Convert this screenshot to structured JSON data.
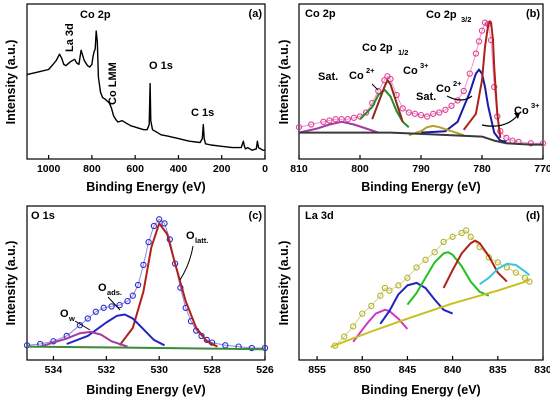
{
  "panels": [
    {
      "id": "a",
      "tag": "(a)",
      "title": "",
      "xlabel": "Binding Energy (eV)",
      "ylabel": "Intensity (a.u.)",
      "xlim": [
        1100,
        0
      ],
      "xticks": [
        "1000",
        "800",
        "600",
        "400",
        "200",
        "0"
      ],
      "annotations": [
        "La 3d",
        "Co 2p",
        "Co LMM",
        "O 1s",
        "C 1s"
      ]
    },
    {
      "id": "b",
      "tag": "(b)",
      "title": "Co 2p",
      "xlabel": "Binding Energy (eV)",
      "ylabel": "Intensity (a.u.)",
      "xlim": [
        810,
        770
      ],
      "xticks": [
        "810",
        "800",
        "790",
        "780",
        "770"
      ],
      "annotations": [
        "Sat.",
        "Co",
        "2+",
        "Co 2p",
        "1/2",
        "Co",
        "3+",
        "Sat.",
        "Co",
        "2+",
        "Co 2p",
        "3/2",
        "Co",
        "3+"
      ]
    },
    {
      "id": "c",
      "tag": "(c)",
      "title": "O 1s",
      "xlabel": "Binding Energy (eV)",
      "ylabel": "Intensity (a.u.)",
      "xlim": [
        535,
        526
      ],
      "xticks": [
        "534",
        "532",
        "530",
        "528",
        "526"
      ],
      "annotations": [
        "O",
        "w",
        "O",
        "ads.",
        "O",
        "latt."
      ]
    },
    {
      "id": "d",
      "tag": "(d)",
      "title": "La 3d",
      "xlabel": "Binding Energy (eV)",
      "ylabel": "Intensity (a.u.)",
      "xlim": [
        857,
        830
      ],
      "xticks": [
        "855",
        "850",
        "845",
        "840",
        "835",
        "830"
      ],
      "annotations": []
    }
  ],
  "chart_data": [
    {
      "panel": "a",
      "type": "line",
      "xlim": [
        1100,
        0
      ],
      "series": [
        {
          "color": "#000000",
          "x": [
            1100,
            1050,
            1000,
            980,
            965,
            950,
            940,
            930,
            920,
            900,
            880,
            870,
            860,
            850,
            835,
            820,
            810,
            800,
            795,
            790,
            785,
            780,
            775,
            770,
            760,
            750,
            740,
            720,
            710,
            700,
            690,
            680,
            660,
            640,
            620,
            600,
            580,
            560,
            545,
            535,
            531,
            528,
            520,
            500,
            480,
            450,
            400,
            350,
            300,
            290,
            285,
            281,
            275,
            250,
            200,
            150,
            110,
            100,
            95,
            90,
            80,
            60,
            40,
            35,
            30,
            20,
            10,
            0
          ],
          "y": [
            0.62,
            0.64,
            0.66,
            0.7,
            0.73,
            0.78,
            0.75,
            0.7,
            0.69,
            0.72,
            0.74,
            0.71,
            0.7,
            0.81,
            0.73,
            0.69,
            0.68,
            0.7,
            0.76,
            0.8,
            0.82,
            0.96,
            0.88,
            0.6,
            0.48,
            0.44,
            0.43,
            0.4,
            0.36,
            0.3,
            0.27,
            0.25,
            0.26,
            0.24,
            0.22,
            0.21,
            0.2,
            0.19,
            0.19,
            0.23,
            0.55,
            0.26,
            0.19,
            0.17,
            0.15,
            0.14,
            0.12,
            0.1,
            0.09,
            0.12,
            0.23,
            0.12,
            0.08,
            0.07,
            0.06,
            0.05,
            0.05,
            0.1,
            0.06,
            0.04,
            0.05,
            0.03,
            0.04,
            0.1,
            0.05,
            0.04,
            0.03,
            0.03
          ]
        }
      ]
    },
    {
      "panel": "b",
      "type": "line",
      "xlim": [
        810,
        770
      ],
      "series": [
        {
          "color": "#e0409a",
          "style": "scatter",
          "x": [
            810,
            808,
            806,
            805,
            804,
            803,
            802,
            801,
            800,
            799,
            798,
            797,
            796,
            795.5,
            795,
            794,
            793,
            792,
            791,
            790,
            789,
            788,
            787,
            786,
            785,
            784,
            783,
            782,
            781,
            780.5,
            780,
            779.5,
            779,
            778.5,
            778,
            777.5,
            777,
            776,
            775,
            774,
            772,
            770
          ],
          "y": [
            0.2,
            0.22,
            0.24,
            0.25,
            0.26,
            0.26,
            0.26,
            0.27,
            0.28,
            0.31,
            0.38,
            0.47,
            0.55,
            0.58,
            0.56,
            0.44,
            0.34,
            0.31,
            0.3,
            0.29,
            0.28,
            0.3,
            0.31,
            0.33,
            0.36,
            0.4,
            0.47,
            0.6,
            0.75,
            0.84,
            0.92,
            0.98,
            0.97,
            0.85,
            0.5,
            0.28,
            0.17,
            0.12,
            0.1,
            0.09,
            0.08,
            0.08
          ]
        },
        {
          "color": "#1a1aa8",
          "x": [
            790,
            786,
            784,
            782,
            781,
            780.5,
            780,
            779.5,
            779,
            778,
            777,
            776
          ],
          "y": [
            0.16,
            0.17,
            0.24,
            0.46,
            0.6,
            0.63,
            0.6,
            0.5,
            0.36,
            0.16,
            0.1,
            0.09
          ]
        },
        {
          "color": "#b0201a",
          "x": [
            783,
            781,
            780,
            779.5,
            779,
            778.7,
            778.5,
            778.2,
            778,
            777.5,
            777
          ],
          "y": [
            0.18,
            0.3,
            0.55,
            0.8,
            0.96,
            0.99,
            0.98,
            0.85,
            0.65,
            0.3,
            0.12
          ]
        },
        {
          "color": "#2a8a2a",
          "x": [
            800,
            798,
            797,
            796,
            795,
            794,
            793,
            792
          ],
          "y": [
            0.26,
            0.35,
            0.44,
            0.48,
            0.43,
            0.32,
            0.24,
            0.2
          ]
        },
        {
          "color": "#8a2a1a",
          "x": [
            798,
            797,
            796,
            795.5,
            795,
            794,
            793
          ],
          "y": [
            0.26,
            0.38,
            0.5,
            0.55,
            0.52,
            0.38,
            0.24
          ]
        },
        {
          "color": "#a43aa4",
          "x": [
            810,
            807,
            805,
            803,
            801,
            799,
            797
          ],
          "y": [
            0.16,
            0.19,
            0.22,
            0.24,
            0.22,
            0.19,
            0.16
          ]
        },
        {
          "color": "#b5a028",
          "x": [
            792,
            790,
            789,
            788,
            787,
            785,
            783
          ],
          "y": [
            0.14,
            0.17,
            0.2,
            0.21,
            0.2,
            0.17,
            0.14
          ]
        },
        {
          "color": "#3a3a3a",
          "x": [
            810,
            800,
            795,
            790,
            785,
            780,
            778,
            776,
            772,
            770
          ],
          "y": [
            0.16,
            0.16,
            0.16,
            0.15,
            0.14,
            0.13,
            0.1,
            0.08,
            0.07,
            0.07
          ]
        }
      ]
    },
    {
      "panel": "c",
      "type": "line",
      "xlim": [
        535,
        526
      ],
      "series": [
        {
          "color": "#2b2bd0",
          "style": "scatter",
          "x": [
            535,
            534.5,
            534,
            533.5,
            533,
            532.7,
            532.4,
            532.1,
            531.8,
            531.5,
            531.2,
            531,
            530.8,
            530.6,
            530.4,
            530.2,
            530,
            529.8,
            529.6,
            529.4,
            529.2,
            529,
            528.8,
            528.6,
            528.4,
            528.2,
            528,
            527.5,
            527,
            526.5,
            526
          ],
          "y": [
            0.05,
            0.06,
            0.08,
            0.12,
            0.2,
            0.25,
            0.3,
            0.33,
            0.34,
            0.35,
            0.38,
            0.42,
            0.5,
            0.65,
            0.82,
            0.94,
            0.99,
            0.96,
            0.84,
            0.66,
            0.48,
            0.33,
            0.23,
            0.16,
            0.12,
            0.09,
            0.07,
            0.05,
            0.04,
            0.03,
            0.03
          ]
        },
        {
          "color": "#b0201a",
          "x": [
            531.5,
            531,
            530.6,
            530.3,
            530,
            529.7,
            529.4,
            529,
            528.6,
            528.2,
            527.8
          ],
          "y": [
            0.05,
            0.18,
            0.45,
            0.78,
            0.96,
            0.88,
            0.66,
            0.38,
            0.18,
            0.08,
            0.04
          ]
        },
        {
          "color": "#2222c8",
          "x": [
            533.5,
            532.7,
            532,
            531.6,
            531.3,
            531,
            530.6,
            530.2,
            529.8
          ],
          "y": [
            0.06,
            0.12,
            0.22,
            0.27,
            0.28,
            0.25,
            0.17,
            0.09,
            0.05
          ]
        },
        {
          "color": "#a43aa4",
          "x": [
            534.5,
            533.5,
            533,
            532.6,
            532.2,
            531.8,
            531.2
          ],
          "y": [
            0.04,
            0.1,
            0.14,
            0.15,
            0.13,
            0.08,
            0.04
          ]
        },
        {
          "color": "#3a8a3a",
          "x": [
            535,
            530,
            526
          ],
          "y": [
            0.04,
            0.03,
            0.02
          ]
        }
      ]
    },
    {
      "panel": "d",
      "type": "line",
      "xlim": [
        857,
        830
      ],
      "series": [
        {
          "color": "#b5b02a",
          "style": "scatter",
          "x": [
            853,
            852,
            851,
            850,
            849,
            848,
            847.5,
            847,
            846,
            845,
            844,
            843,
            842,
            841,
            840,
            839,
            838.5,
            838,
            837,
            836,
            835,
            834,
            833,
            832,
            831.5
          ],
          "y": [
            0.05,
            0.12,
            0.2,
            0.3,
            0.36,
            0.44,
            0.5,
            0.48,
            0.52,
            0.58,
            0.66,
            0.72,
            0.78,
            0.86,
            0.9,
            0.93,
            0.95,
            0.9,
            0.82,
            0.74,
            0.7,
            0.66,
            0.62,
            0.58,
            0.55
          ]
        },
        {
          "color": "#d035c8",
          "x": [
            851,
            849.5,
            848.5,
            847.5,
            847,
            846,
            845
          ],
          "y": [
            0.08,
            0.22,
            0.3,
            0.33,
            0.32,
            0.26,
            0.18
          ]
        },
        {
          "color": "#2222c0",
          "x": [
            848,
            847,
            846,
            845,
            844,
            843,
            842,
            841,
            840
          ],
          "y": [
            0.22,
            0.32,
            0.45,
            0.52,
            0.54,
            0.5,
            0.41,
            0.33,
            0.3
          ]
        },
        {
          "color": "#22c022",
          "x": [
            845,
            844,
            843,
            842,
            841,
            840.5,
            840,
            839,
            838,
            837,
            836
          ],
          "y": [
            0.37,
            0.46,
            0.58,
            0.7,
            0.77,
            0.78,
            0.76,
            0.67,
            0.55,
            0.47,
            0.44
          ]
        },
        {
          "color": "#b0201a",
          "x": [
            841,
            840,
            839,
            838,
            837.5,
            837,
            836,
            835,
            834
          ],
          "y": [
            0.5,
            0.64,
            0.77,
            0.85,
            0.87,
            0.85,
            0.75,
            0.62,
            0.55
          ]
        },
        {
          "color": "#35c8e0",
          "x": [
            837,
            836,
            835,
            834,
            833,
            832,
            831.5
          ],
          "y": [
            0.53,
            0.58,
            0.65,
            0.69,
            0.68,
            0.63,
            0.6
          ]
        },
        {
          "color": "#c8c020",
          "x": [
            853.5,
            849,
            845,
            840,
            835,
            831.5
          ],
          "y": [
            0.04,
            0.16,
            0.26,
            0.38,
            0.48,
            0.56
          ]
        }
      ]
    }
  ]
}
